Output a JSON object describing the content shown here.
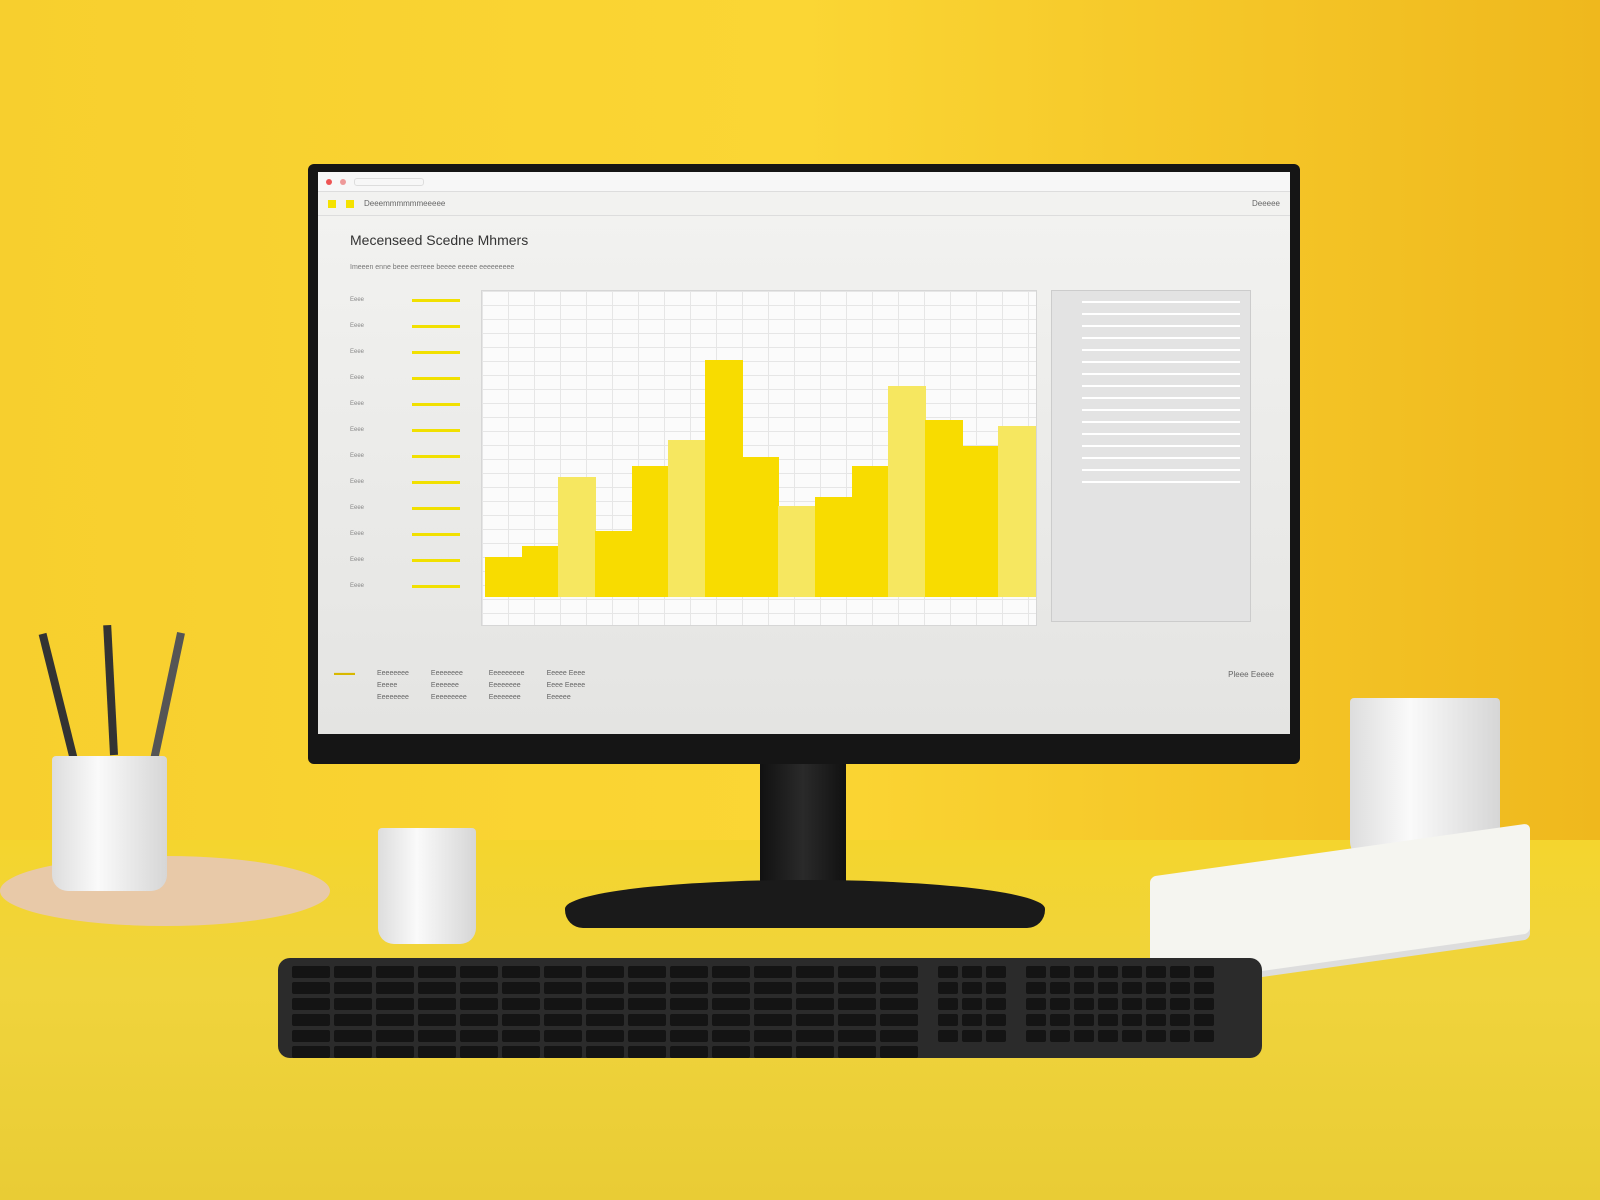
{
  "screen": {
    "title": "Mecenseed Scedne Mhmers",
    "subtitle": "Imeeen enne beee eerreee beeee eeeee eeeeeeeee",
    "breadcrumb": "Deeemmmmmmeeeee",
    "nav_right": "Deeeee",
    "colors": {
      "accent": "#f8dc00",
      "background": "#f0f0ee"
    },
    "row_labels": [
      "Eeee",
      "Eeee",
      "Eeee",
      "Eeee",
      "Eeee",
      "Eeee",
      "Eeee",
      "Eeee",
      "Eeee",
      "Eeee",
      "Eeee",
      "Eeee"
    ],
    "chart": {
      "type": "bar",
      "values": [
        14,
        18,
        42,
        23,
        46,
        55,
        83,
        49,
        32,
        35,
        46,
        74,
        62,
        53,
        60
      ]
    },
    "footer": {
      "columns": [
        [
          "Eeeeeeee",
          "Eeeee",
          "Eeeeeeee"
        ],
        [
          "Eeeeeeee",
          "Eeeeeee",
          "Eeeeeeeee"
        ],
        [
          "Eeeeeeeee",
          "Eeeeeeee",
          "Eeeeeeee"
        ],
        [
          "Eeeee Eeee",
          "Eeee Eeeee",
          "Eeeeee"
        ]
      ],
      "right_link": "Pleee Eeeee"
    }
  }
}
